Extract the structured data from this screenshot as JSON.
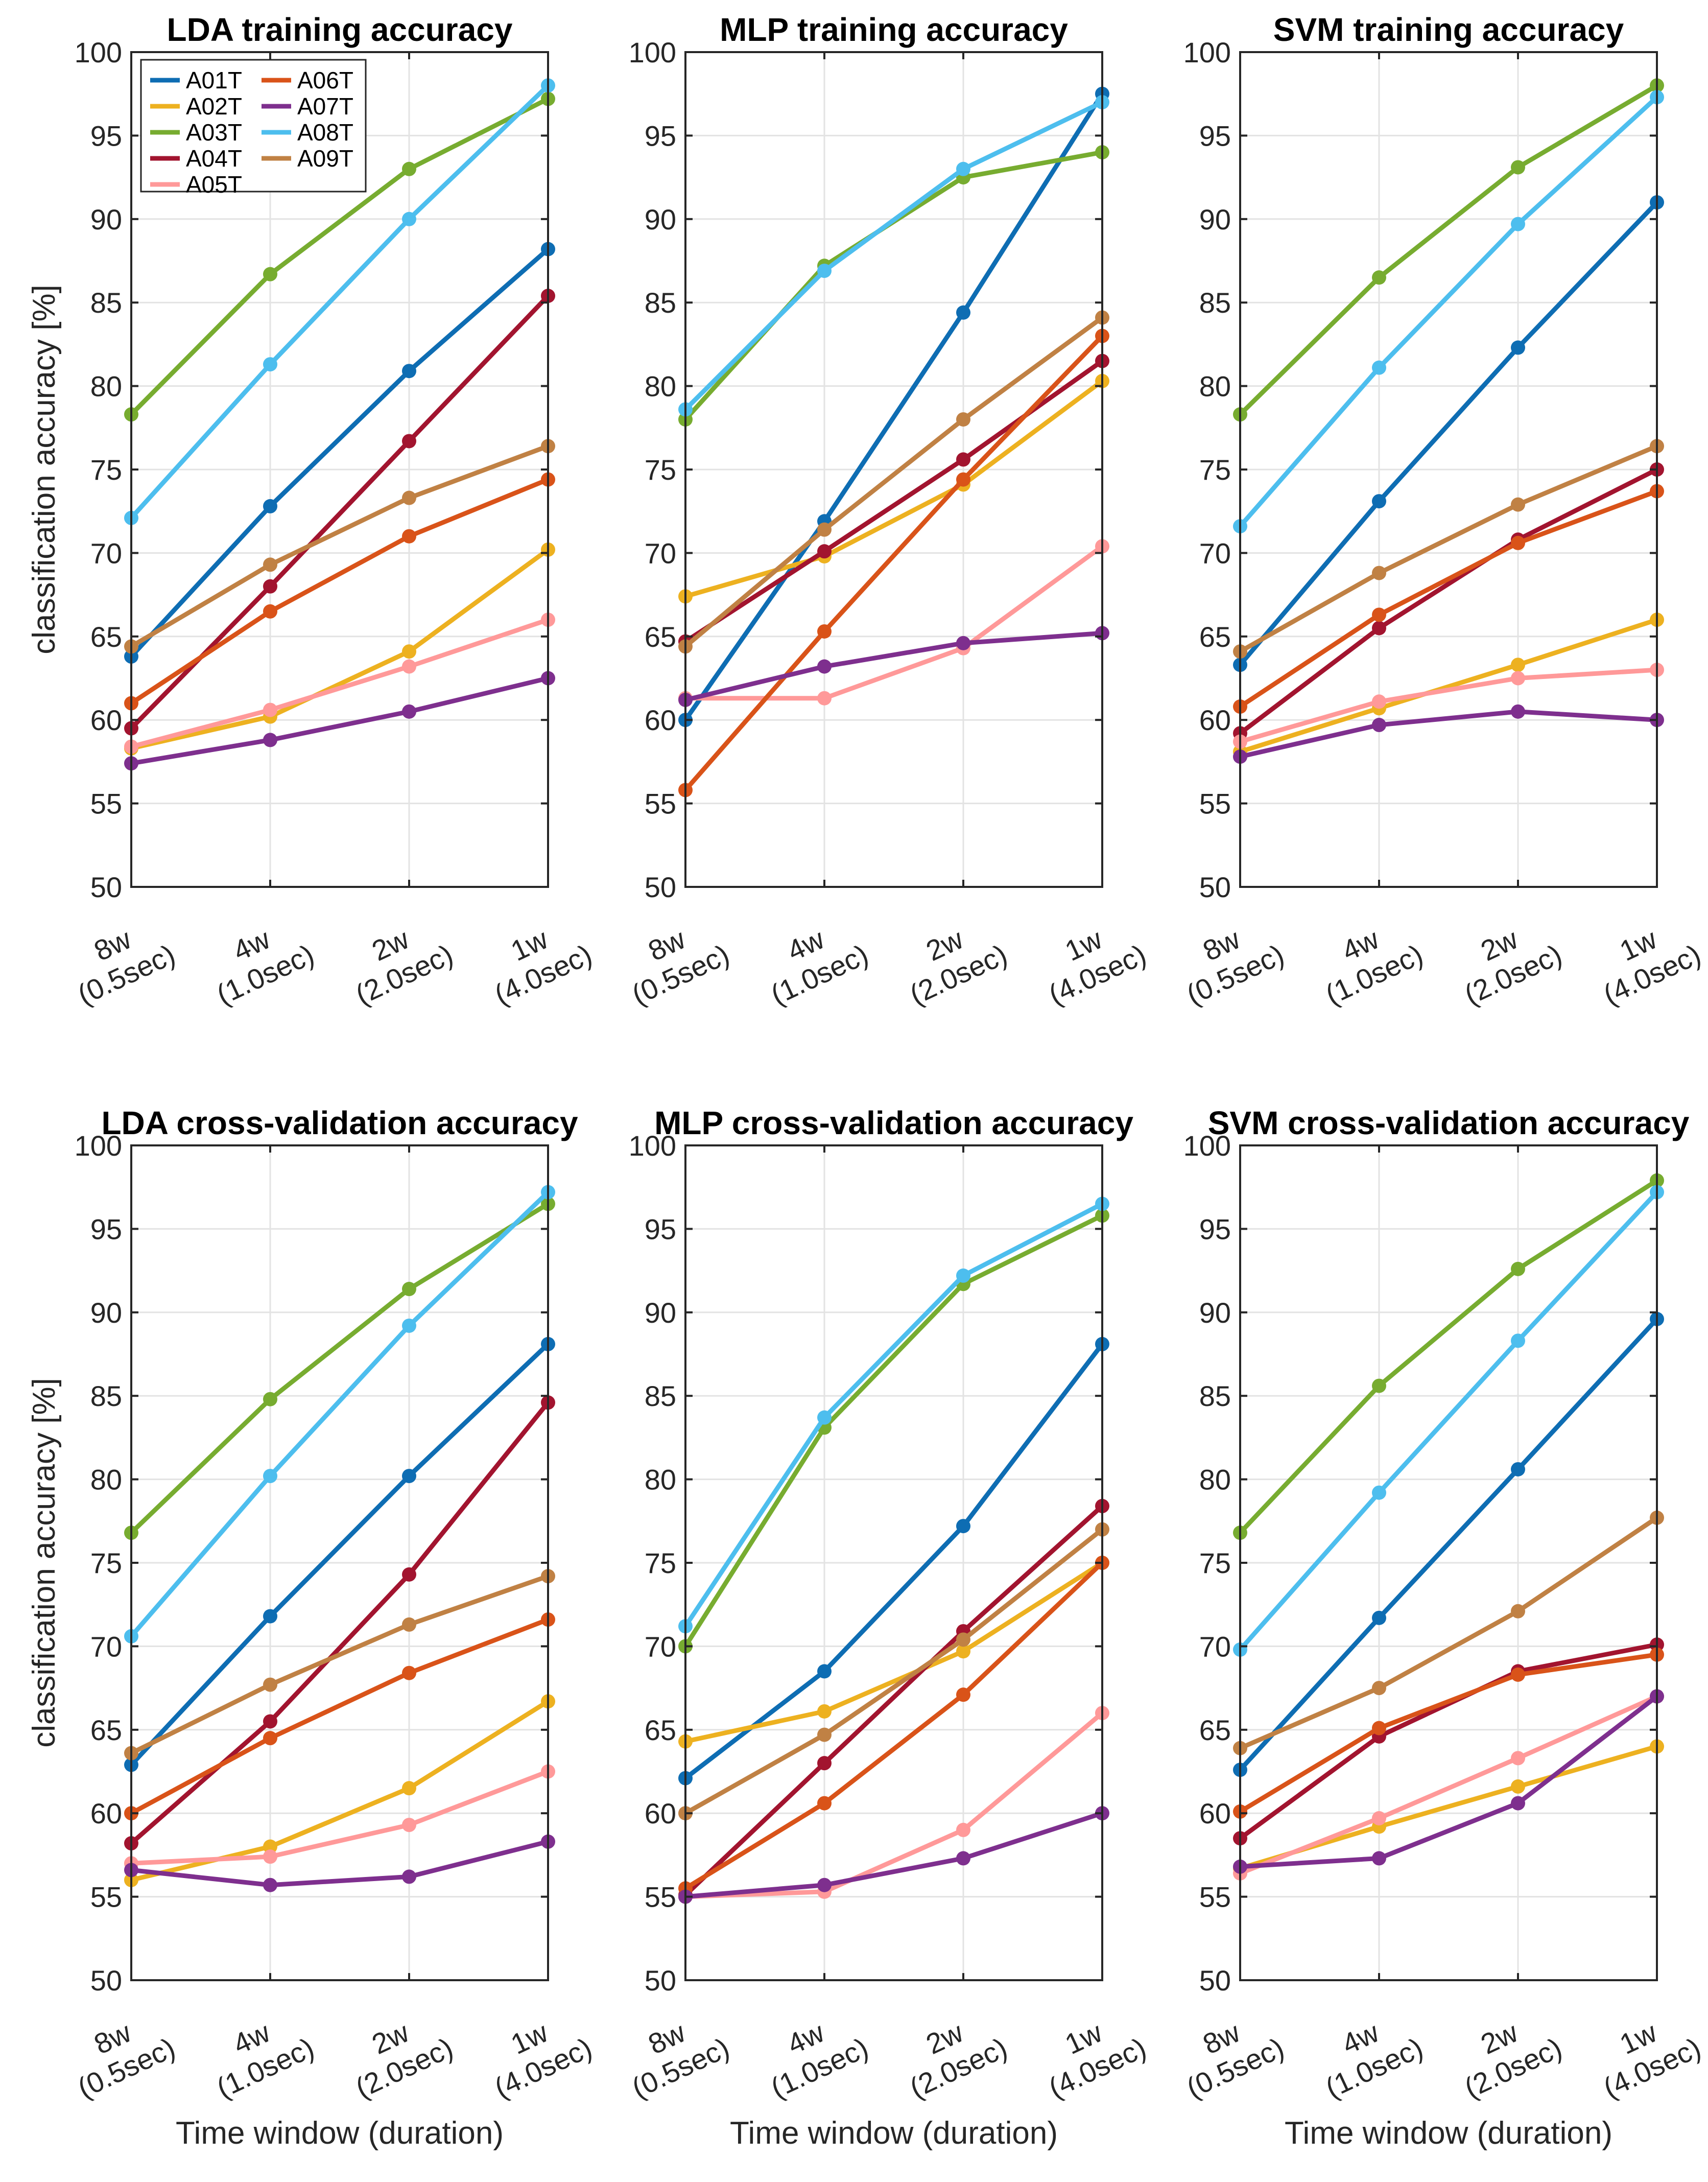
{
  "chart_data": {
    "type": "line",
    "ylim": [
      50,
      100
    ],
    "yticks": [
      50,
      55,
      60,
      65,
      70,
      75,
      80,
      85,
      90,
      95,
      100
    ],
    "grid": true,
    "categories": [
      [
        "8w",
        "(0.5sec)"
      ],
      [
        "4w",
        "(1.0sec)"
      ],
      [
        "2w",
        "(2.0sec)"
      ],
      [
        "1w",
        "(4.0sec)"
      ]
    ],
    "legend": {
      "placement": "top-left of first panel",
      "entries": [
        "A01T",
        "A06T",
        "A02T",
        "A07T",
        "A03T",
        "A08T",
        "A04T",
        "A09T",
        "A05T"
      ]
    },
    "series_styles": {
      "A01T": "#0E6DB3",
      "A02T": "#EDB120",
      "A03T": "#77AC30",
      "A04T": "#A2142F",
      "A05T": "#FF9999",
      "A06T": "#D95319",
      "A07T": "#7E2F8E",
      "A08T": "#4DBEEE",
      "A09T": "#C08144"
    },
    "panels": [
      {
        "title": "LDA training accuracy",
        "ylabel": "classification accuracy [%]",
        "xlabel": "",
        "series": [
          {
            "name": "A01T",
            "values": [
              63.8,
              72.8,
              80.9,
              88.2
            ]
          },
          {
            "name": "A02T",
            "values": [
              58.3,
              60.2,
              64.1,
              70.2
            ]
          },
          {
            "name": "A03T",
            "values": [
              78.3,
              86.7,
              93.0,
              97.2
            ]
          },
          {
            "name": "A04T",
            "values": [
              59.5,
              68.0,
              76.7,
              85.4
            ]
          },
          {
            "name": "A05T",
            "values": [
              58.4,
              60.6,
              63.2,
              66.0
            ]
          },
          {
            "name": "A06T",
            "values": [
              61.0,
              66.5,
              71.0,
              74.4
            ]
          },
          {
            "name": "A07T",
            "values": [
              57.4,
              58.8,
              60.5,
              62.5
            ]
          },
          {
            "name": "A08T",
            "values": [
              72.1,
              81.3,
              90.0,
              98.0
            ]
          },
          {
            "name": "A09T",
            "values": [
              64.4,
              69.3,
              73.3,
              76.4
            ]
          }
        ]
      },
      {
        "title": "MLP training accuracy",
        "ylabel": "",
        "xlabel": "",
        "series": [
          {
            "name": "A01T",
            "values": [
              60.0,
              71.9,
              84.4,
              97.5
            ]
          },
          {
            "name": "A02T",
            "values": [
              67.4,
              69.8,
              74.1,
              80.3
            ]
          },
          {
            "name": "A03T",
            "values": [
              78.0,
              87.2,
              92.5,
              94.0
            ]
          },
          {
            "name": "A04T",
            "values": [
              64.7,
              70.1,
              75.6,
              81.5
            ]
          },
          {
            "name": "A05T",
            "values": [
              61.3,
              61.3,
              64.3,
              70.4
            ]
          },
          {
            "name": "A06T",
            "values": [
              55.8,
              65.3,
              74.4,
              83.0
            ]
          },
          {
            "name": "A07T",
            "values": [
              61.2,
              63.2,
              64.6,
              65.2
            ]
          },
          {
            "name": "A08T",
            "values": [
              78.6,
              86.9,
              93.0,
              97.0
            ]
          },
          {
            "name": "A09T",
            "values": [
              64.4,
              71.4,
              78.0,
              84.1
            ]
          }
        ]
      },
      {
        "title": "SVM  training accuracy",
        "ylabel": "",
        "xlabel": "",
        "series": [
          {
            "name": "A01T",
            "values": [
              63.3,
              73.1,
              82.3,
              91.0
            ]
          },
          {
            "name": "A02T",
            "values": [
              58.1,
              60.7,
              63.3,
              66.0
            ]
          },
          {
            "name": "A03T",
            "values": [
              78.3,
              86.5,
              93.1,
              98.0
            ]
          },
          {
            "name": "A04T",
            "values": [
              59.2,
              65.5,
              70.8,
              75.0
            ]
          },
          {
            "name": "A05T",
            "values": [
              58.7,
              61.1,
              62.5,
              63.0
            ]
          },
          {
            "name": "A06T",
            "values": [
              60.8,
              66.3,
              70.6,
              73.7
            ]
          },
          {
            "name": "A07T",
            "values": [
              57.8,
              59.7,
              60.5,
              60.0
            ]
          },
          {
            "name": "A08T",
            "values": [
              71.6,
              81.1,
              89.7,
              97.3
            ]
          },
          {
            "name": "A09T",
            "values": [
              64.1,
              68.8,
              72.9,
              76.4
            ]
          }
        ]
      },
      {
        "title": "LDA cross-validation accuracy",
        "ylabel": "classification accuracy [%]",
        "xlabel": "Time window (duration)",
        "series": [
          {
            "name": "A01T",
            "values": [
              62.9,
              71.8,
              80.2,
              88.1
            ]
          },
          {
            "name": "A02T",
            "values": [
              56.0,
              58.0,
              61.5,
              66.7
            ]
          },
          {
            "name": "A03T",
            "values": [
              76.8,
              84.8,
              91.4,
              96.5
            ]
          },
          {
            "name": "A04T",
            "values": [
              58.2,
              65.5,
              74.3,
              84.6
            ]
          },
          {
            "name": "A05T",
            "values": [
              57.0,
              57.4,
              59.3,
              62.5
            ]
          },
          {
            "name": "A06T",
            "values": [
              60.0,
              64.5,
              68.4,
              71.6
            ]
          },
          {
            "name": "A07T",
            "values": [
              56.6,
              55.7,
              56.2,
              58.3
            ]
          },
          {
            "name": "A08T",
            "values": [
              70.6,
              80.2,
              89.2,
              97.2
            ]
          },
          {
            "name": "A09T",
            "values": [
              63.6,
              67.7,
              71.3,
              74.2
            ]
          }
        ]
      },
      {
        "title": "MLP cross-validation accuracy",
        "ylabel": "",
        "xlabel": "Time window (duration)",
        "series": [
          {
            "name": "A01T",
            "values": [
              62.1,
              68.5,
              77.2,
              88.1
            ]
          },
          {
            "name": "A02T",
            "values": [
              64.3,
              66.1,
              69.7,
              75.0
            ]
          },
          {
            "name": "A03T",
            "values": [
              70.0,
              83.1,
              91.7,
              95.8
            ]
          },
          {
            "name": "A04T",
            "values": [
              55.1,
              63.0,
              70.9,
              78.4
            ]
          },
          {
            "name": "A05T",
            "values": [
              55.0,
              55.3,
              59.0,
              66.0
            ]
          },
          {
            "name": "A06T",
            "values": [
              55.5,
              60.6,
              67.1,
              75.0
            ]
          },
          {
            "name": "A07T",
            "values": [
              55.0,
              55.7,
              57.3,
              60.0
            ]
          },
          {
            "name": "A08T",
            "values": [
              71.2,
              83.7,
              92.2,
              96.5
            ]
          },
          {
            "name": "A09T",
            "values": [
              60.0,
              64.7,
              70.4,
              77.0
            ]
          }
        ]
      },
      {
        "title": "SVM cross-validation accuracy",
        "ylabel": "",
        "xlabel": "Time window (duration)",
        "series": [
          {
            "name": "A01T",
            "values": [
              62.6,
              71.7,
              80.6,
              89.6
            ]
          },
          {
            "name": "A02T",
            "values": [
              56.7,
              59.2,
              61.6,
              64.0
            ]
          },
          {
            "name": "A03T",
            "values": [
              76.8,
              85.6,
              92.6,
              97.9
            ]
          },
          {
            "name": "A04T",
            "values": [
              58.5,
              64.6,
              68.5,
              70.1
            ]
          },
          {
            "name": "A05T",
            "values": [
              56.4,
              59.7,
              63.3,
              67.0
            ]
          },
          {
            "name": "A06T",
            "values": [
              60.1,
              65.1,
              68.3,
              69.5
            ]
          },
          {
            "name": "A07T",
            "values": [
              56.8,
              57.3,
              60.6,
              67.0
            ]
          },
          {
            "name": "A08T",
            "values": [
              69.8,
              79.2,
              88.3,
              97.2
            ]
          },
          {
            "name": "A09T",
            "values": [
              63.9,
              67.5,
              72.1,
              77.7
            ]
          }
        ]
      }
    ]
  }
}
